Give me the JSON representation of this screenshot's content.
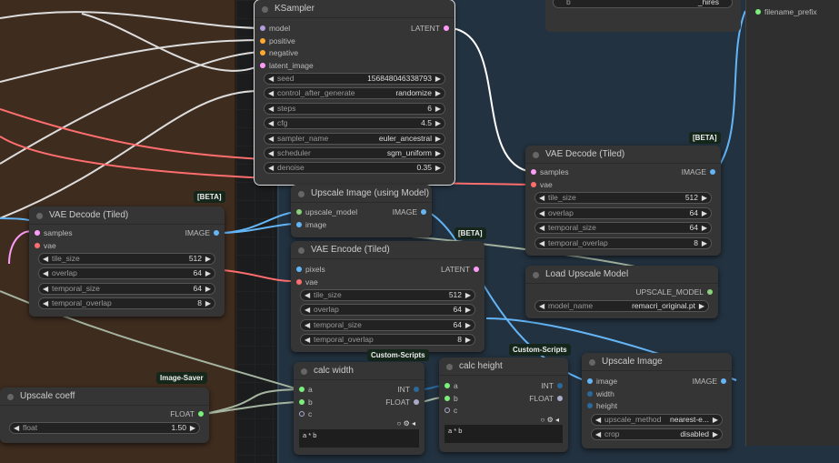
{
  "colors": {
    "model": "#b39ddb",
    "conditioning": "#ffa931",
    "latent": "#ff9cf9",
    "vae": "#ff6e6e",
    "image": "#64b5f6",
    "int": "#29699c",
    "float": "#aaaacc",
    "upscale_model": "#8bd07a",
    "any": "#7aef7a"
  },
  "top_node": {
    "widget_label": "b",
    "widget_value": "_hires"
  },
  "right_panel": {
    "filename_prefix": "filename_prefix"
  },
  "nodes": [
    {
      "id": "ksampler",
      "title": "KSampler",
      "selected": true,
      "inputs": [
        {
          "name": "model",
          "type": "model"
        },
        {
          "name": "positive",
          "type": "conditioning"
        },
        {
          "name": "negative",
          "type": "conditioning"
        },
        {
          "name": "latent_image",
          "type": "latent"
        }
      ],
      "outputs": [
        {
          "name": "LATENT",
          "type": "latent"
        }
      ],
      "widgets": [
        {
          "name": "seed",
          "value": "156848046338793"
        },
        {
          "name": "control_after_generate",
          "value": "randomize"
        },
        {
          "name": "steps",
          "value": "6"
        },
        {
          "name": "cfg",
          "value": "4.5"
        },
        {
          "name": "sampler_name",
          "value": "euler_ancestral"
        },
        {
          "name": "scheduler",
          "value": "sgm_uniform"
        },
        {
          "name": "denoise",
          "value": "0.35"
        }
      ]
    },
    {
      "id": "upscale-with-model",
      "title": "Upscale Image (using Model)",
      "inputs": [
        {
          "name": "upscale_model",
          "type": "upscale_model"
        },
        {
          "name": "image",
          "type": "image"
        }
      ],
      "outputs": [
        {
          "name": "IMAGE",
          "type": "image"
        }
      ],
      "widgets": []
    },
    {
      "id": "vae-encode-tiled",
      "title": "VAE Encode (Tiled)",
      "badge": "[BETA]",
      "inputs": [
        {
          "name": "pixels",
          "type": "image"
        },
        {
          "name": "vae",
          "type": "vae"
        }
      ],
      "outputs": [
        {
          "name": "LATENT",
          "type": "latent"
        }
      ],
      "widgets": [
        {
          "name": "tile_size",
          "value": "512"
        },
        {
          "name": "overlap",
          "value": "64"
        },
        {
          "name": "temporal_size",
          "value": "64"
        },
        {
          "name": "temporal_overlap",
          "value": "8"
        }
      ]
    },
    {
      "id": "vae-decode-tiled-left",
      "title": "VAE Decode (Tiled)",
      "badge": "[BETA]",
      "inputs": [
        {
          "name": "samples",
          "type": "latent"
        },
        {
          "name": "vae",
          "type": "vae"
        }
      ],
      "outputs": [
        {
          "name": "IMAGE",
          "type": "image"
        }
      ],
      "widgets": [
        {
          "name": "tile_size",
          "value": "512"
        },
        {
          "name": "overlap",
          "value": "64"
        },
        {
          "name": "temporal_size",
          "value": "64"
        },
        {
          "name": "temporal_overlap",
          "value": "8"
        }
      ]
    },
    {
      "id": "vae-decode-tiled-right",
      "title": "VAE Decode (Tiled)",
      "badge": "[BETA]",
      "inputs": [
        {
          "name": "samples",
          "type": "latent"
        },
        {
          "name": "vae",
          "type": "vae"
        }
      ],
      "outputs": [
        {
          "name": "IMAGE",
          "type": "image"
        }
      ],
      "widgets": [
        {
          "name": "tile_size",
          "value": "512"
        },
        {
          "name": "overlap",
          "value": "64"
        },
        {
          "name": "temporal_size",
          "value": "64"
        },
        {
          "name": "temporal_overlap",
          "value": "8"
        }
      ]
    },
    {
      "id": "load-upscale-model",
      "title": "Load Upscale Model",
      "inputs": [],
      "outputs": [
        {
          "name": "UPSCALE_MODEL",
          "type": "upscale_model"
        }
      ],
      "widgets": [
        {
          "name": "model_name",
          "value": "remacri_original.pt"
        }
      ]
    },
    {
      "id": "upscale-image",
      "title": "Upscale Image",
      "inputs": [
        {
          "name": "image",
          "type": "image"
        },
        {
          "name": "width",
          "type": "int"
        },
        {
          "name": "height",
          "type": "int"
        }
      ],
      "outputs": [
        {
          "name": "IMAGE",
          "type": "image"
        }
      ],
      "widgets": [
        {
          "name": "upscale_method",
          "value": "nearest-e..."
        },
        {
          "name": "crop",
          "value": "disabled"
        }
      ]
    },
    {
      "id": "calc-width",
      "title": "calc width",
      "badge": "Custom-Scripts",
      "inputs": [
        {
          "name": "a",
          "type": "any"
        },
        {
          "name": "b",
          "type": "any"
        },
        {
          "name": "c",
          "type": "float",
          "hollow": true
        }
      ],
      "outputs": [
        {
          "name": "INT",
          "type": "int"
        },
        {
          "name": "FLOAT",
          "type": "float"
        }
      ],
      "widgets": [],
      "expression": "a * b"
    },
    {
      "id": "calc-height",
      "title": "calc height",
      "badge": "Custom-Scripts",
      "inputs": [
        {
          "name": "a",
          "type": "any"
        },
        {
          "name": "b",
          "type": "any"
        },
        {
          "name": "c",
          "type": "float",
          "hollow": true
        }
      ],
      "outputs": [
        {
          "name": "INT",
          "type": "int"
        },
        {
          "name": "FLOAT",
          "type": "float"
        }
      ],
      "widgets": [],
      "expression": "a * b"
    },
    {
      "id": "upscale-coeff",
      "title": "Upscale coeff",
      "badge": "Image-Saver",
      "inputs": [],
      "outputs": [
        {
          "name": "FLOAT",
          "type": "any"
        }
      ],
      "widgets": [
        {
          "name": "float",
          "value": "1.50"
        }
      ]
    }
  ]
}
